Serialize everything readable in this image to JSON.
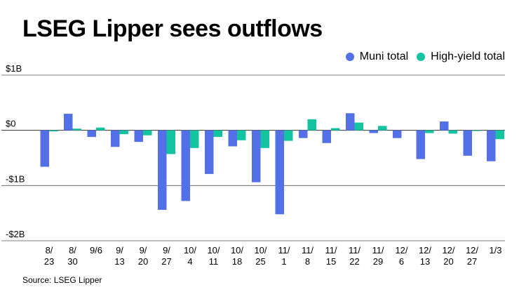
{
  "chart_data": {
    "type": "bar",
    "title": "LSEG Lipper sees outflows",
    "source": "Source: LSEG Lipper",
    "categories": [
      [
        "8/",
        "23"
      ],
      [
        "8/",
        "30"
      ],
      [
        "9/6",
        ""
      ],
      [
        "9/",
        "13"
      ],
      [
        "9/",
        "20"
      ],
      [
        "9/",
        "27"
      ],
      [
        "10/",
        "4"
      ],
      [
        "10/",
        "11"
      ],
      [
        "10/",
        "18"
      ],
      [
        "10/",
        "25"
      ],
      [
        "11/",
        "1"
      ],
      [
        "11/",
        "8"
      ],
      [
        "11/",
        "15"
      ],
      [
        "11/",
        "22"
      ],
      [
        "11/",
        "29"
      ],
      [
        "12/",
        "6"
      ],
      [
        "12/",
        "13"
      ],
      [
        "12/",
        "20"
      ],
      [
        "12/",
        "27"
      ],
      [
        "1/3",
        ""
      ]
    ],
    "series": [
      {
        "name": "Muni total",
        "color": "#5470e6",
        "values": [
          -0.66,
          0.3,
          -0.12,
          -0.3,
          -0.21,
          -1.44,
          -1.28,
          -0.79,
          -0.29,
          -0.94,
          -1.52,
          -0.14,
          -0.23,
          0.31,
          -0.05,
          -0.14,
          -0.52,
          0.16,
          -0.46,
          -0.56
        ]
      },
      {
        "name": "High-yield total",
        "color": "#14c3a0",
        "values": [
          -0.02,
          0.03,
          0.05,
          -0.07,
          -0.09,
          -0.43,
          -0.32,
          -0.12,
          -0.18,
          -0.32,
          -0.19,
          0.2,
          0.04,
          0.14,
          0.08,
          0.0,
          -0.05,
          -0.06,
          -0.01,
          -0.16
        ]
      }
    ],
    "y_ticks": [
      {
        "value": 1,
        "label": "$1B"
      },
      {
        "value": 0,
        "label": "$0"
      },
      {
        "value": -1,
        "label": "-$1B"
      },
      {
        "value": -2,
        "label": "-$2B"
      }
    ],
    "ylim": [
      -2,
      1
    ]
  }
}
